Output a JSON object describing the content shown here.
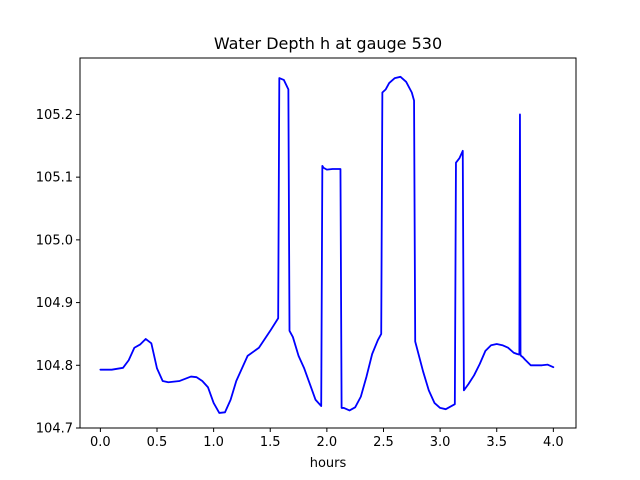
{
  "chart_data": {
    "type": "line",
    "title": "Water Depth h at gauge 530",
    "xlabel": "hours",
    "ylabel": "",
    "xlim": [
      -0.18,
      4.2
    ],
    "ylim": [
      104.7,
      105.29
    ],
    "xticks": [
      0.0,
      0.5,
      1.0,
      1.5,
      2.0,
      2.5,
      3.0,
      3.5,
      4.0
    ],
    "xtick_labels": [
      "0.0",
      "0.5",
      "1.0",
      "1.5",
      "2.0",
      "2.5",
      "3.0",
      "3.5",
      "4.0"
    ],
    "yticks": [
      104.7,
      104.8,
      104.9,
      105.0,
      105.1,
      105.2
    ],
    "ytick_labels": [
      "104.7",
      "104.8",
      "104.9",
      "105.0",
      "105.1",
      "105.2"
    ],
    "grid": false,
    "series": [
      {
        "color": "#0000ff",
        "x": [
          0.0,
          0.1,
          0.2,
          0.25,
          0.3,
          0.35,
          0.4,
          0.45,
          0.5,
          0.55,
          0.6,
          0.7,
          0.8,
          0.85,
          0.9,
          0.95,
          1.0,
          1.05,
          1.1,
          1.15,
          1.2,
          1.3,
          1.4,
          1.5,
          1.57,
          1.58,
          1.62,
          1.66,
          1.67,
          1.7,
          1.75,
          1.8,
          1.85,
          1.9,
          1.95,
          1.96,
          1.97,
          2.0,
          2.05,
          2.1,
          2.12,
          2.13,
          2.15,
          2.2,
          2.25,
          2.3,
          2.35,
          2.4,
          2.45,
          2.48,
          2.49,
          2.52,
          2.55,
          2.6,
          2.65,
          2.7,
          2.75,
          2.77,
          2.78,
          2.85,
          2.9,
          2.95,
          3.0,
          3.05,
          3.1,
          3.13,
          3.14,
          3.17,
          3.2,
          3.21,
          3.25,
          3.3,
          3.35,
          3.4,
          3.45,
          3.5,
          3.55,
          3.6,
          3.65,
          3.68,
          3.7,
          3.705,
          3.71,
          3.715,
          3.73,
          3.75,
          3.8,
          3.85,
          3.9,
          3.95,
          4.0
        ],
        "y": [
          104.793,
          104.793,
          104.796,
          104.808,
          104.828,
          104.833,
          104.842,
          104.835,
          104.795,
          104.775,
          104.773,
          104.775,
          104.782,
          104.781,
          104.775,
          104.765,
          104.74,
          104.724,
          104.725,
          104.745,
          104.775,
          104.815,
          104.828,
          104.855,
          104.875,
          105.258,
          105.255,
          105.24,
          104.855,
          104.845,
          104.815,
          104.795,
          104.77,
          104.745,
          104.735,
          105.118,
          105.115,
          105.112,
          105.113,
          105.113,
          105.113,
          104.732,
          104.732,
          104.728,
          104.733,
          104.75,
          104.782,
          104.818,
          104.84,
          104.85,
          105.235,
          105.24,
          105.25,
          105.258,
          105.26,
          105.252,
          105.235,
          105.222,
          104.838,
          104.79,
          104.76,
          104.74,
          104.732,
          104.73,
          104.735,
          104.738,
          105.123,
          105.13,
          105.142,
          104.76,
          104.77,
          104.784,
          104.802,
          104.823,
          104.832,
          104.834,
          104.832,
          104.828,
          104.82,
          104.818,
          104.817,
          105.2,
          104.817,
          104.815,
          104.813,
          104.809,
          104.8,
          104.8,
          104.8,
          104.801,
          104.797
        ]
      }
    ]
  }
}
